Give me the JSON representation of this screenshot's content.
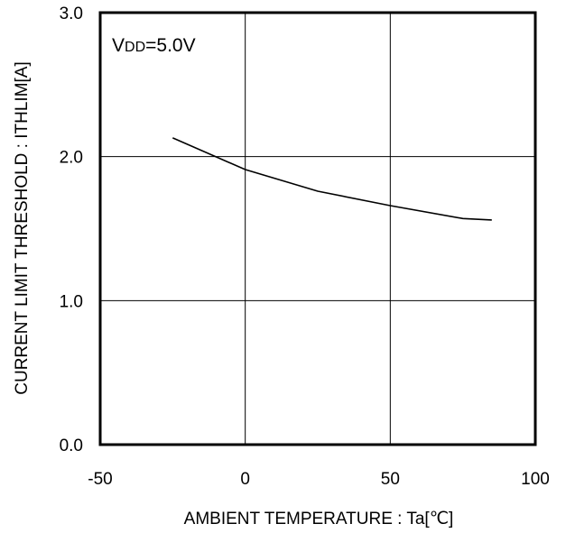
{
  "chart_data": {
    "type": "line",
    "title": "",
    "annotation_main": "V",
    "annotation_sub": "DD",
    "annotation_rest": "=5.0V",
    "xlabel": "AMBIENT TEMPERATURE : Ta[℃]",
    "ylabel": "CURRENT LIMIT THRESHOLD : ITHLIM[A]",
    "xlim": [
      -50,
      100
    ],
    "ylim": [
      0.0,
      3.0
    ],
    "x_ticks": [
      -50,
      0,
      50,
      100
    ],
    "x_tick_labels": [
      "-50",
      "0",
      "50",
      "100"
    ],
    "y_ticks": [
      0.0,
      1.0,
      2.0,
      3.0
    ],
    "y_tick_labels": [
      "0.0",
      "1.0",
      "2.0",
      "3.0"
    ],
    "grid": true,
    "series": [
      {
        "x": [
          -25,
          0,
          25,
          50,
          75,
          85
        ],
        "y": [
          2.13,
          1.91,
          1.76,
          1.66,
          1.57,
          1.56
        ]
      }
    ],
    "line_color": "#000000"
  }
}
